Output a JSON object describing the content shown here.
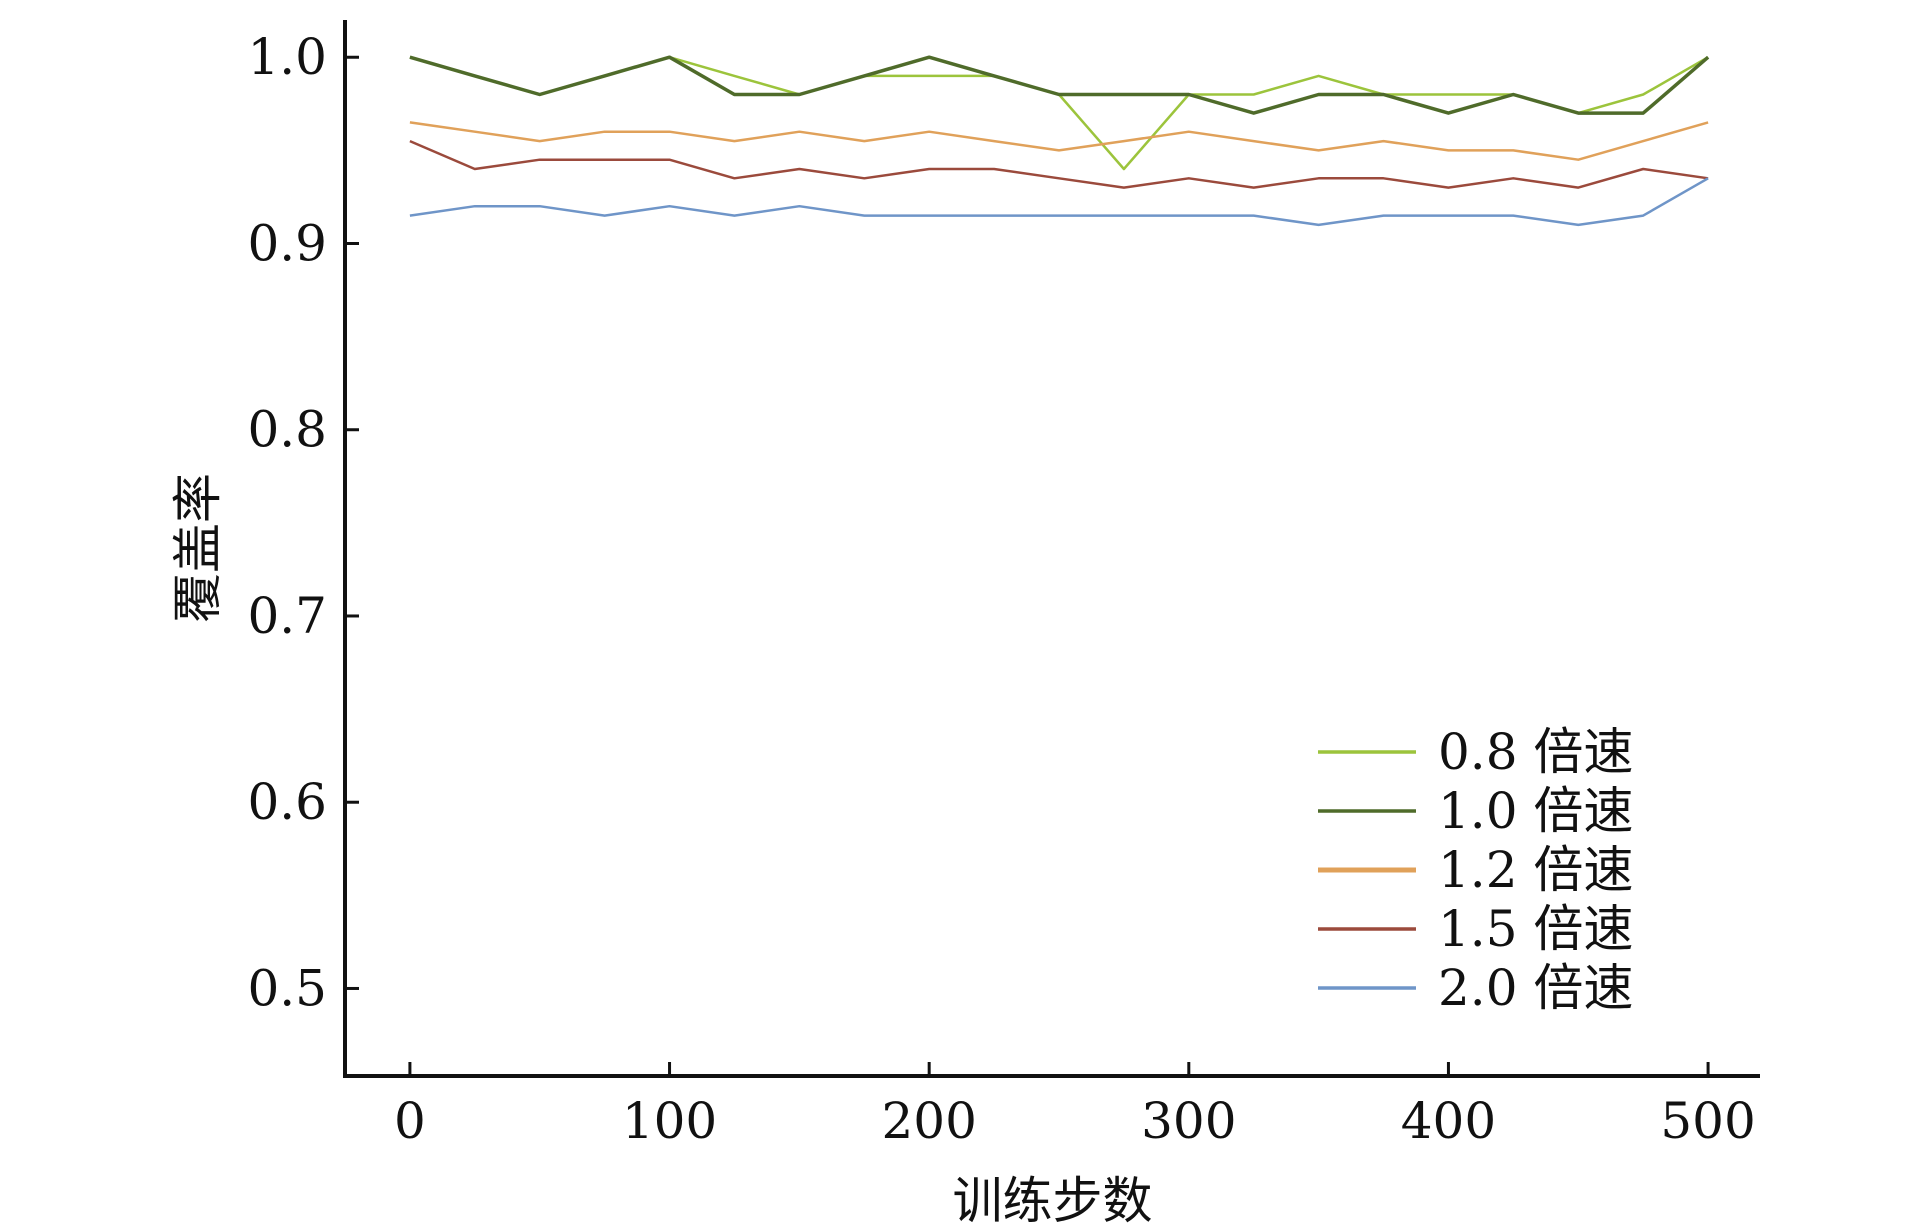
{
  "chart_data": {
    "type": "line",
    "title": "",
    "xlabel": "训练步数",
    "ylabel": "覆盖率",
    "xlim": [
      -25,
      520
    ],
    "ylim": [
      0.453,
      1.02
    ],
    "xticks": [
      0,
      100,
      200,
      300,
      400,
      500
    ],
    "xtick_labels": [
      "0",
      "100",
      "200",
      "300",
      "400",
      "500"
    ],
    "yticks": [
      0.5,
      0.6,
      0.7,
      0.8,
      0.9,
      1.0
    ],
    "ytick_labels": [
      "0.5",
      "0.6",
      "0.7",
      "0.8",
      "0.9",
      "1.0"
    ],
    "grid": false,
    "legend_position": "bottom-right",
    "colors": {
      "axis": "#111111",
      "s08": "#9cc43c",
      "s10": "#4f6b2a",
      "s12": "#e0a15a",
      "s15": "#9b4a3c",
      "s20": "#6f95c8"
    },
    "series": [
      {
        "name": "0.8 倍速",
        "color": "#9cc43c",
        "x": [
          0,
          25,
          50,
          75,
          100,
          125,
          150,
          175,
          200,
          225,
          250,
          275,
          300,
          325,
          350,
          375,
          400,
          425,
          450,
          475,
          500
        ],
        "y": [
          1.0,
          0.99,
          0.98,
          0.99,
          1.0,
          0.99,
          0.98,
          0.99,
          0.99,
          0.99,
          0.98,
          0.94,
          0.98,
          0.98,
          0.99,
          0.98,
          0.98,
          0.98,
          0.97,
          0.98,
          1.0
        ]
      },
      {
        "name": "1.0 倍速",
        "color": "#4f6b2a",
        "x": [
          0,
          25,
          50,
          75,
          100,
          125,
          150,
          175,
          200,
          225,
          250,
          275,
          300,
          325,
          350,
          375,
          400,
          425,
          450,
          475,
          500
        ],
        "y": [
          1.0,
          0.99,
          0.98,
          0.99,
          1.0,
          0.98,
          0.98,
          0.99,
          1.0,
          0.99,
          0.98,
          0.98,
          0.98,
          0.97,
          0.98,
          0.98,
          0.97,
          0.98,
          0.97,
          0.97,
          1.0
        ]
      },
      {
        "name": "1.2 倍速",
        "color": "#e0a15a",
        "x": [
          0,
          25,
          50,
          75,
          100,
          125,
          150,
          175,
          200,
          225,
          250,
          275,
          300,
          325,
          350,
          375,
          400,
          425,
          450,
          475,
          500
        ],
        "y": [
          0.965,
          0.96,
          0.955,
          0.96,
          0.96,
          0.955,
          0.96,
          0.955,
          0.96,
          0.955,
          0.95,
          0.955,
          0.96,
          0.955,
          0.95,
          0.955,
          0.95,
          0.95,
          0.945,
          0.955,
          0.965
        ]
      },
      {
        "name": "1.5 倍速",
        "color": "#9b4a3c",
        "x": [
          0,
          25,
          50,
          75,
          100,
          125,
          150,
          175,
          200,
          225,
          250,
          275,
          300,
          325,
          350,
          375,
          400,
          425,
          450,
          475,
          500
        ],
        "y": [
          0.955,
          0.94,
          0.945,
          0.945,
          0.945,
          0.935,
          0.94,
          0.935,
          0.94,
          0.94,
          0.935,
          0.93,
          0.935,
          0.93,
          0.935,
          0.935,
          0.93,
          0.935,
          0.93,
          0.94,
          0.935
        ]
      },
      {
        "name": "2.0 倍速",
        "color": "#6f95c8",
        "x": [
          0,
          25,
          50,
          75,
          100,
          125,
          150,
          175,
          200,
          225,
          250,
          275,
          300,
          325,
          350,
          375,
          400,
          425,
          450,
          475,
          500
        ],
        "y": [
          0.915,
          0.92,
          0.92,
          0.915,
          0.92,
          0.915,
          0.92,
          0.915,
          0.915,
          0.915,
          0.915,
          0.915,
          0.915,
          0.915,
          0.91,
          0.915,
          0.915,
          0.915,
          0.91,
          0.915,
          0.935
        ]
      }
    ]
  }
}
